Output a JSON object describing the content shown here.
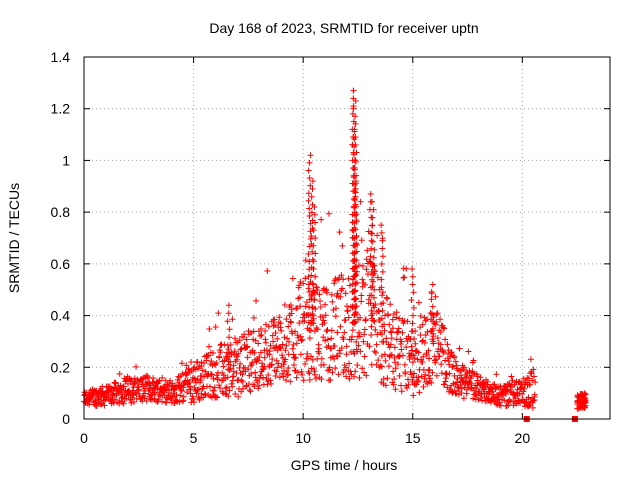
{
  "chart_data": {
    "type": "scatter",
    "title": "Day 168 of 2023, SRMTID for receiver uptn",
    "xlabel": "GPS time / hours",
    "ylabel": "SRMTID / TECUs",
    "xlim": [
      0,
      24
    ],
    "ylim": [
      0,
      1.4
    ],
    "xticks": [
      "0",
      "5",
      "10",
      "15",
      "20"
    ],
    "yticks": [
      "0",
      "0.2",
      "0.4",
      "0.6",
      "0.8",
      "1",
      "1.2",
      "1.4"
    ],
    "grid": true,
    "marker": "plus",
    "series": [
      {
        "name": "SRMTID",
        "color": "#ff0000",
        "segments": [
          {
            "x": 0.0,
            "baseline": 0.08,
            "spread": 0.03
          },
          {
            "x": 1.0,
            "baseline": 0.09,
            "spread": 0.04
          },
          {
            "x": 2.0,
            "baseline": 0.11,
            "spread": 0.05
          },
          {
            "x": 3.0,
            "baseline": 0.12,
            "spread": 0.05
          },
          {
            "x": 4.0,
            "baseline": 0.1,
            "spread": 0.04
          },
          {
            "x": 5.0,
            "baseline": 0.14,
            "spread": 0.08
          },
          {
            "x": 6.0,
            "baseline": 0.18,
            "spread": 0.1
          },
          {
            "x": 7.0,
            "baseline": 0.2,
            "spread": 0.12
          },
          {
            "x": 8.0,
            "baseline": 0.24,
            "spread": 0.12
          },
          {
            "x": 9.0,
            "baseline": 0.28,
            "spread": 0.14
          },
          {
            "x": 10.0,
            "baseline": 0.35,
            "spread": 0.2
          },
          {
            "x": 11.0,
            "baseline": 0.33,
            "spread": 0.18
          },
          {
            "x": 12.0,
            "baseline": 0.36,
            "spread": 0.22
          },
          {
            "x": 13.0,
            "baseline": 0.4,
            "spread": 0.24
          },
          {
            "x": 14.0,
            "baseline": 0.28,
            "spread": 0.16
          },
          {
            "x": 15.0,
            "baseline": 0.22,
            "spread": 0.14
          },
          {
            "x": 16.0,
            "baseline": 0.3,
            "spread": 0.15
          },
          {
            "x": 17.0,
            "baseline": 0.15,
            "spread": 0.07
          },
          {
            "x": 18.0,
            "baseline": 0.12,
            "spread": 0.05
          },
          {
            "x": 19.0,
            "baseline": 0.09,
            "spread": 0.04
          },
          {
            "x": 20.0,
            "baseline": 0.1,
            "spread": 0.05
          },
          {
            "x": 20.6,
            "baseline": 0.12,
            "spread": 0.08
          }
        ],
        "peaks": [
          {
            "x": 6.6,
            "y": 0.44
          },
          {
            "x": 10.3,
            "y": 1.02
          },
          {
            "x": 10.4,
            "y": 0.92
          },
          {
            "x": 10.5,
            "y": 0.82
          },
          {
            "x": 12.3,
            "y": 1.27
          },
          {
            "x": 12.35,
            "y": 1.23
          },
          {
            "x": 12.3,
            "y": 1.12
          },
          {
            "x": 12.4,
            "y": 1.09
          },
          {
            "x": 12.4,
            "y": 0.92
          },
          {
            "x": 13.1,
            "y": 0.87
          },
          {
            "x": 13.2,
            "y": 0.84
          },
          {
            "x": 13.6,
            "y": 0.75
          },
          {
            "x": 15.9,
            "y": 0.52
          },
          {
            "x": 15.0,
            "y": 0.58
          }
        ],
        "late_cluster": {
          "x_start": 22.5,
          "x_end": 22.9,
          "y_min": 0.04,
          "y_max": 0.1
        },
        "zero_markers": [
          {
            "x": 20.2,
            "y": 0.0
          },
          {
            "x": 22.4,
            "y": 0.0
          }
        ]
      }
    ]
  }
}
